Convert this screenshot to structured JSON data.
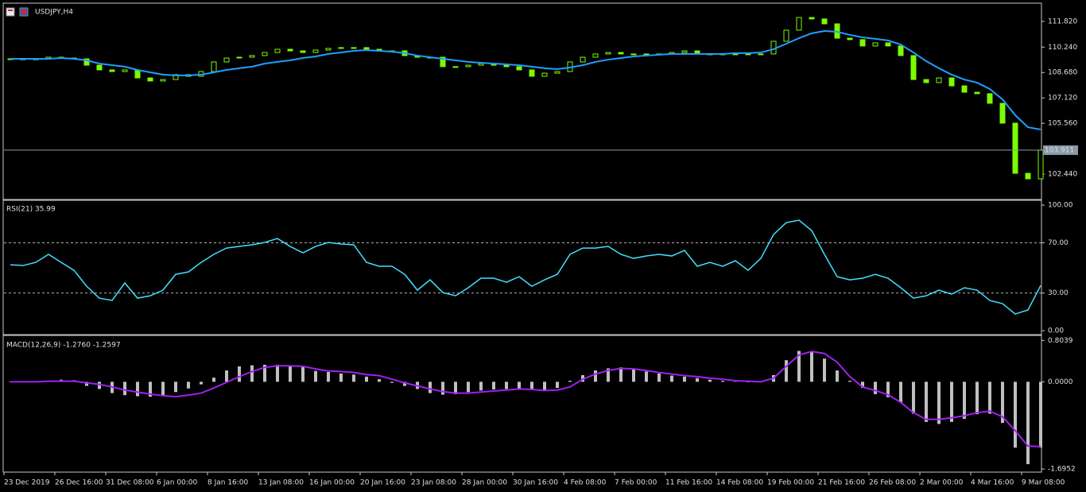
{
  "chart_data": [
    {
      "type": "candlestick",
      "title": "USDJPY,H4",
      "color": "#7cfc00",
      "open": [
        109.5,
        109.52,
        109.52,
        109.52,
        109.62,
        109.57,
        109.52,
        109.13,
        108.84,
        108.74,
        108.84,
        108.35,
        108.16,
        108.25,
        108.55,
        108.45,
        108.74,
        109.33,
        109.57,
        109.62,
        109.72,
        109.91,
        110.11,
        110.01,
        109.91,
        110.06,
        110.16,
        110.21,
        110.21,
        110.11,
        110.01,
        110.01,
        109.72,
        109.62,
        109.62,
        109.04,
        109.04,
        109.13,
        109.23,
        109.13,
        109.04,
        108.84,
        108.45,
        108.64,
        108.74,
        109.33,
        109.62,
        109.82,
        109.91,
        109.82,
        109.82,
        109.82,
        109.82,
        109.91,
        110.01,
        109.82,
        109.82,
        109.82,
        109.82,
        109.82,
        109.82,
        110.6,
        111.28,
        112.06,
        111.97,
        111.67,
        110.79,
        110.7,
        110.31,
        110.5,
        110.31,
        109.72,
        108.25,
        108.06,
        108.35,
        107.86,
        107.47,
        107.38,
        106.79,
        105.57,
        102.49,
        102.15
      ],
      "close": [
        109.52,
        109.52,
        109.52,
        109.62,
        109.57,
        109.52,
        109.13,
        108.84,
        108.74,
        108.84,
        108.35,
        108.16,
        108.25,
        108.55,
        108.45,
        108.74,
        109.33,
        109.57,
        109.62,
        109.72,
        109.91,
        110.11,
        110.01,
        109.91,
        110.06,
        110.16,
        110.21,
        110.21,
        110.11,
        110.01,
        110.01,
        109.72,
        109.62,
        109.62,
        109.04,
        109.04,
        109.13,
        109.23,
        109.13,
        109.04,
        108.84,
        108.45,
        108.64,
        108.74,
        109.33,
        109.62,
        109.82,
        109.91,
        109.82,
        109.82,
        109.82,
        109.82,
        109.91,
        110.01,
        109.82,
        109.82,
        109.82,
        109.82,
        109.82,
        109.82,
        110.6,
        111.28,
        112.06,
        111.97,
        111.67,
        110.79,
        110.7,
        110.31,
        110.5,
        110.31,
        109.72,
        108.25,
        108.06,
        108.35,
        107.86,
        107.47,
        107.38,
        106.79,
        105.57,
        102.49,
        102.15,
        103.91
      ],
      "overlay": {
        "color": "#1e9fff",
        "values": [
          109.52,
          109.52,
          109.52,
          109.52,
          109.57,
          109.52,
          109.43,
          109.23,
          109.13,
          109.04,
          108.84,
          108.69,
          108.55,
          108.5,
          108.5,
          108.55,
          108.69,
          108.84,
          108.94,
          109.04,
          109.23,
          109.33,
          109.43,
          109.57,
          109.67,
          109.82,
          109.91,
          110.01,
          110.06,
          110.01,
          109.96,
          109.87,
          109.72,
          109.62,
          109.52,
          109.43,
          109.33,
          109.28,
          109.23,
          109.18,
          109.13,
          109.04,
          108.94,
          108.89,
          108.99,
          109.13,
          109.33,
          109.47,
          109.57,
          109.67,
          109.72,
          109.77,
          109.82,
          109.82,
          109.82,
          109.82,
          109.82,
          109.87,
          109.87,
          109.91,
          110.11,
          110.45,
          110.79,
          111.09,
          111.23,
          111.18,
          110.99,
          110.84,
          110.75,
          110.65,
          110.4,
          109.91,
          109.38,
          108.94,
          108.55,
          108.25,
          108.06,
          107.67,
          107.03,
          106.06,
          105.32,
          105.18
        ]
      },
      "last_price": 103.911,
      "ylim": [
        100.93,
        112.89
      ],
      "yticks": [
        {
          "value": 111.82,
          "label": "111.820"
        },
        {
          "value": 110.24,
          "label": "110.240"
        },
        {
          "value": 108.68,
          "label": "108.680"
        },
        {
          "value": 107.12,
          "label": "107.120"
        },
        {
          "value": 105.56,
          "label": "105.560"
        },
        {
          "value": 102.44,
          "label": "102.440"
        }
      ]
    },
    {
      "type": "line",
      "title": "RSI(21) 35.99",
      "color": "#40e0ff",
      "values": [
        52.5,
        51.9,
        54.4,
        60.8,
        54.4,
        48.1,
        35.4,
        25.9,
        24.1,
        38.0,
        25.9,
        27.8,
        32.3,
        44.9,
        46.8,
        54.4,
        60.8,
        65.8,
        67.1,
        68.4,
        70.3,
        73.4,
        67.1,
        62.0,
        67.1,
        70.3,
        69.0,
        68.4,
        54.4,
        51.3,
        51.3,
        44.9,
        32.3,
        40.5,
        30.4,
        27.8,
        34.2,
        41.8,
        41.8,
        38.6,
        43.0,
        35.4,
        40.5,
        44.9,
        60.8,
        65.8,
        65.8,
        67.1,
        60.8,
        57.6,
        59.5,
        60.8,
        59.5,
        63.9,
        51.3,
        54.4,
        51.3,
        55.7,
        48.1,
        57.6,
        76.6,
        86.1,
        88.0,
        79.7,
        60.8,
        43.0,
        40.5,
        41.8,
        44.9,
        41.8,
        34.2,
        25.9,
        27.8,
        32.3,
        29.1,
        34.2,
        32.3,
        24.1,
        21.5,
        13.3,
        16.5,
        36.0
      ],
      "levels": [
        70,
        30
      ],
      "ylim": [
        -2.5,
        103.2
      ],
      "yticks": [
        {
          "value": 100,
          "label": "100.00"
        },
        {
          "value": 70,
          "label": "70.00"
        },
        {
          "value": 30,
          "label": "30.00"
        },
        {
          "value": 0,
          "label": "0.00"
        }
      ]
    },
    {
      "type": "bar",
      "title": "MACD(12,26,9) -1.2760 -1.2597",
      "color": "#c0c0c0",
      "values": [
        0.0,
        0.0,
        0.01,
        0.02,
        0.04,
        0.03,
        -0.08,
        -0.14,
        -0.22,
        -0.26,
        -0.28,
        -0.29,
        -0.26,
        -0.2,
        -0.13,
        -0.05,
        0.08,
        0.22,
        0.3,
        0.32,
        0.33,
        0.33,
        0.32,
        0.29,
        0.21,
        0.19,
        0.16,
        0.14,
        0.1,
        0.05,
        -0.02,
        -0.08,
        -0.14,
        -0.22,
        -0.25,
        -0.24,
        -0.2,
        -0.17,
        -0.15,
        -0.14,
        -0.14,
        -0.16,
        -0.18,
        -0.12,
        0.02,
        0.13,
        0.22,
        0.26,
        0.28,
        0.25,
        0.2,
        0.16,
        0.12,
        0.1,
        0.07,
        0.04,
        0.02,
        0.01,
        0.0,
        0.01,
        0.13,
        0.42,
        0.6,
        0.58,
        0.45,
        0.22,
        0.02,
        -0.12,
        -0.24,
        -0.3,
        -0.4,
        -0.62,
        -0.78,
        -0.82,
        -0.78,
        -0.72,
        -0.63,
        -0.62,
        -0.8,
        -1.28,
        -1.6,
        -1.28
      ],
      "signal": {
        "color": "#a020f0",
        "values": [
          0.0,
          0.0,
          0.0,
          0.01,
          0.01,
          0.01,
          -0.02,
          -0.05,
          -0.1,
          -0.16,
          -0.2,
          -0.24,
          -0.27,
          -0.29,
          -0.26,
          -0.22,
          -0.12,
          -0.01,
          0.1,
          0.2,
          0.28,
          0.31,
          0.31,
          0.3,
          0.25,
          0.21,
          0.2,
          0.18,
          0.14,
          0.12,
          0.05,
          -0.02,
          -0.08,
          -0.14,
          -0.19,
          -0.22,
          -0.22,
          -0.2,
          -0.18,
          -0.16,
          -0.14,
          -0.15,
          -0.17,
          -0.16,
          -0.1,
          0.05,
          0.15,
          0.22,
          0.26,
          0.25,
          0.22,
          0.18,
          0.15,
          0.12,
          0.1,
          0.07,
          0.05,
          0.02,
          0.01,
          0.0,
          0.07,
          0.3,
          0.52,
          0.59,
          0.55,
          0.38,
          0.1,
          -0.1,
          -0.17,
          -0.25,
          -0.4,
          -0.6,
          -0.73,
          -0.73,
          -0.7,
          -0.66,
          -0.6,
          -0.57,
          -0.68,
          -0.95,
          -1.25,
          -1.26
        ]
      },
      "ylim": [
        -1.74,
        0.87
      ],
      "yticks": [
        0.8039,
        {
          "value": 0,
          "label": "0.0000"
        },
        -1.6952
      ],
      "categories": [
        "23 Dec 2019",
        null,
        null,
        null,
        "26 Dec 16:00",
        null,
        null,
        null,
        "31 Dec 08:00",
        null,
        null,
        null,
        "6 Jan 00:00",
        null,
        null,
        null,
        "8 Jan 16:00",
        null,
        null,
        null,
        "13 Jan 08:00",
        null,
        null,
        null,
        "16 Jan 00:00",
        null,
        null,
        null,
        "20 Jan 16:00",
        null,
        null,
        null,
        "23 Jan 08:00",
        null,
        null,
        null,
        "28 Jan 00:00",
        null,
        null,
        null,
        "30 Jan 16:00",
        null,
        null,
        null,
        "4 Feb 08:00",
        null,
        null,
        null,
        "7 Feb 00:00",
        null,
        null,
        null,
        "11 Feb 16:00",
        null,
        null,
        null,
        "14 Feb 08:00",
        null,
        null,
        null,
        "19 Feb 00:00",
        null,
        null,
        null,
        "21 Feb 16:00",
        null,
        null,
        null,
        "26 Feb 08:00",
        null,
        null,
        null,
        "2 Mar 00:00",
        null,
        null,
        null,
        "4 Mar 16:00",
        null,
        null,
        null,
        "9 Mar 08:00",
        null
      ]
    }
  ]
}
